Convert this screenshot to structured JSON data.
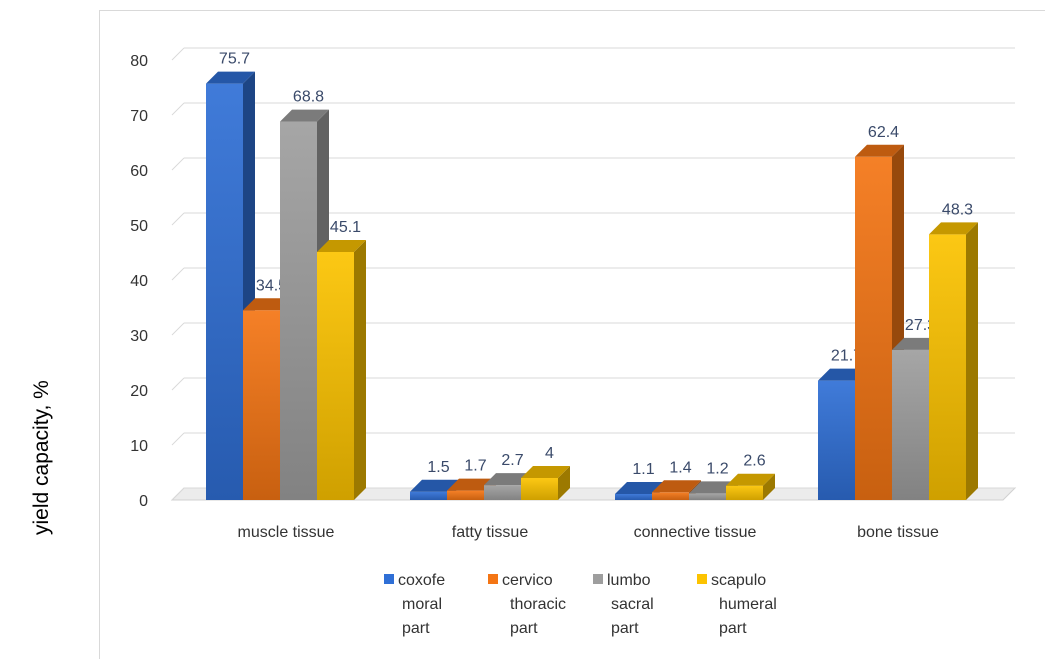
{
  "chart_data": {
    "type": "bar",
    "ylabel": "yield capacity, %",
    "ylim": [
      0,
      80
    ],
    "yticks": [
      0,
      10,
      20,
      30,
      40,
      50,
      60,
      70,
      80
    ],
    "grid": true,
    "legend_position": "bottom",
    "categories": [
      "muscle tissue",
      "fatty tissue",
      "connective tissue",
      "bone tissue"
    ],
    "series": [
      {
        "name": "coxofe moral part",
        "legend_lines": [
          "coxofe",
          "moral",
          "part"
        ],
        "color": "#2f6fd6",
        "values": [
          75.7,
          1.5,
          1.1,
          21.7
        ]
      },
      {
        "name": "cervico thoracic part",
        "legend_lines": [
          "cervico",
          "thoracic",
          "part"
        ],
        "color": "#f47514",
        "values": [
          34.5,
          1.7,
          1.4,
          62.4
        ]
      },
      {
        "name": "lumbo sacral part",
        "legend_lines": [
          "lumbo",
          "sacral",
          "part"
        ],
        "color": "#9e9e9e",
        "values": [
          68.8,
          2.7,
          1.2,
          27.3
        ]
      },
      {
        "name": "scapulo humeral part",
        "legend_lines": [
          "scapulo",
          "humeral",
          "part"
        ],
        "color": "#fcc300",
        "values": [
          45.1,
          4,
          2.6,
          48.3
        ]
      }
    ]
  }
}
